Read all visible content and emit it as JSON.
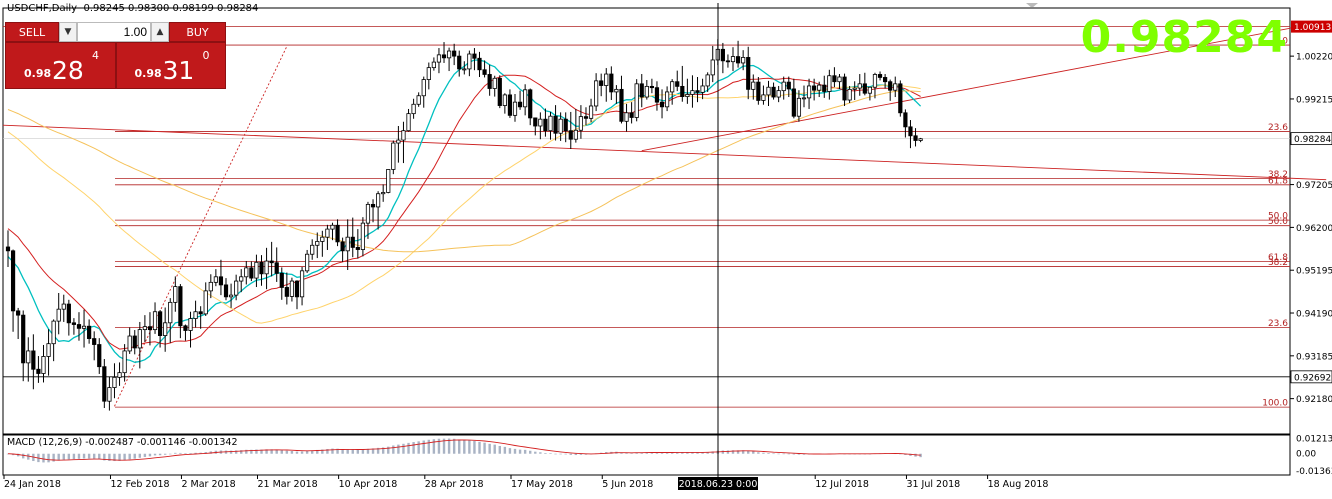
{
  "header": {
    "symbol_line": "USDCHF,Daily  0.98245 0.98300 0.98199 0.98284",
    "big_price": "0.98284"
  },
  "trade_panel": {
    "sell_label": "SELL",
    "buy_label": "BUY",
    "volume": "1.00",
    "sell_small": "0.98",
    "sell_large": "28",
    "sell_sup": "4",
    "buy_small": "0.98",
    "buy_large": "31",
    "buy_sup": "0"
  },
  "macd_label": "MACD (12,26,9) -0.002487 -0.001146 -0.001342",
  "cursor_date": "2018.06.23 0:00",
  "colors": {
    "bull": "#ffffff",
    "bear": "#000000",
    "ma_fast": "#00c0c0",
    "ma_mid": "#d42020",
    "ma_slow1": "#ffd36b",
    "ma_slow2": "#f5c25a",
    "fib": "#b22222",
    "current_price_bg": "#ffffff",
    "resistance_bg": "#cc0000"
  },
  "chart_data": [
    {
      "type": "candlestick",
      "symbol": "USDCHF",
      "timeframe": "Daily",
      "ylim": [
        0.9135,
        1.0135
      ],
      "x_tick_labels": [
        "24 Jan 2018",
        "12 Feb 2018",
        "2 Mar 2018",
        "21 Mar 2018",
        "10 Apr 2018",
        "28 Apr 2018",
        "17 May 2018",
        "5 Jun 2018",
        "12 Jul 2018",
        "31 Jul 2018",
        "18 Aug 2018"
      ],
      "y_tick_labels": [
        "0.92180",
        "0.93185",
        "0.94190",
        "0.95195",
        "0.96200",
        "0.97205",
        "0.98284",
        "0.99215",
        "1.00220",
        "1.00913"
      ],
      "price_markers": {
        "current": 0.98284,
        "line": 0.92692,
        "resistance": 1.00913
      },
      "fib_levels": [
        {
          "label": "23.6",
          "price": 0.9845
        },
        {
          "label": "38.2",
          "price": 0.9735
        },
        {
          "label": "61.8",
          "price": 0.972
        },
        {
          "label": "50.0",
          "price": 0.9637
        },
        {
          "label": "50.0",
          "price": 0.9624
        },
        {
          "label": "61.8",
          "price": 0.954
        },
        {
          "label": "38.2",
          "price": 0.9528
        },
        {
          "label": "23.6",
          "price": 0.9385
        },
        {
          "label": "100.0",
          "price": 0.9198
        },
        {
          "label": "0.0",
          "price": 1.0048
        }
      ],
      "ohlc": [
        [
          0.9574,
          0.9613,
          0.9527,
          0.9565
        ],
        [
          0.9565,
          0.9568,
          0.9375,
          0.9424
        ],
        [
          0.9424,
          0.9431,
          0.9358,
          0.9414
        ],
        [
          0.9414,
          0.9425,
          0.9259,
          0.9302
        ],
        [
          0.9302,
          0.9362,
          0.9258,
          0.933
        ],
        [
          0.933,
          0.9369,
          0.924,
          0.9287
        ],
        [
          0.9287,
          0.9318,
          0.9255,
          0.9277
        ],
        [
          0.9277,
          0.9344,
          0.9256,
          0.9317
        ],
        [
          0.9317,
          0.9381,
          0.9272,
          0.9347
        ],
        [
          0.9347,
          0.9404,
          0.9306,
          0.94
        ],
        [
          0.94,
          0.9466,
          0.9369,
          0.9428
        ],
        [
          0.9428,
          0.9462,
          0.9398,
          0.944
        ],
        [
          0.944,
          0.945,
          0.9366,
          0.9396
        ],
        [
          0.9396,
          0.9407,
          0.9368,
          0.9392
        ],
        [
          0.9392,
          0.9421,
          0.9354,
          0.9383
        ],
        [
          0.9383,
          0.9427,
          0.9338,
          0.9388
        ],
        [
          0.9388,
          0.9404,
          0.9347,
          0.9359
        ],
        [
          0.9359,
          0.9376,
          0.9308,
          0.9345
        ],
        [
          0.9345,
          0.936,
          0.9276,
          0.9293
        ],
        [
          0.9293,
          0.9311,
          0.9196,
          0.9212
        ],
        [
          0.9212,
          0.9269,
          0.919,
          0.9244
        ],
        [
          0.9244,
          0.9301,
          0.9219,
          0.9268
        ],
        [
          0.9268,
          0.9303,
          0.9248,
          0.9279
        ],
        [
          0.9279,
          0.9346,
          0.9258,
          0.933
        ],
        [
          0.933,
          0.9385,
          0.9323,
          0.9365
        ],
        [
          0.9365,
          0.9379,
          0.9322,
          0.9337
        ],
        [
          0.9337,
          0.9398,
          0.9289,
          0.938
        ],
        [
          0.938,
          0.9414,
          0.9351,
          0.9387
        ],
        [
          0.9387,
          0.9421,
          0.9343,
          0.938
        ],
        [
          0.938,
          0.9444,
          0.937,
          0.9422
        ],
        [
          0.9422,
          0.9426,
          0.9338,
          0.9366
        ],
        [
          0.9366,
          0.9432,
          0.9328,
          0.9396
        ],
        [
          0.9396,
          0.9454,
          0.9349,
          0.9444
        ],
        [
          0.9444,
          0.9505,
          0.9422,
          0.9481
        ],
        [
          0.9481,
          0.9487,
          0.936,
          0.9389
        ],
        [
          0.9389,
          0.9392,
          0.9354,
          0.9378
        ],
        [
          0.9378,
          0.9422,
          0.9338,
          0.9406
        ],
        [
          0.9406,
          0.9448,
          0.9385,
          0.9422
        ],
        [
          0.9422,
          0.9435,
          0.9382,
          0.9417
        ],
        [
          0.9417,
          0.9491,
          0.9412,
          0.9471
        ],
        [
          0.9471,
          0.951,
          0.9454,
          0.9491
        ],
        [
          0.9491,
          0.9522,
          0.9482,
          0.9504
        ],
        [
          0.9504,
          0.9544,
          0.9461,
          0.9485
        ],
        [
          0.9485,
          0.9501,
          0.9449,
          0.9457
        ],
        [
          0.9457,
          0.9488,
          0.9431,
          0.9461
        ],
        [
          0.9461,
          0.9509,
          0.9449,
          0.9494
        ],
        [
          0.9494,
          0.9522,
          0.9468,
          0.9504
        ],
        [
          0.9504,
          0.9541,
          0.9486,
          0.9525
        ],
        [
          0.9525,
          0.954,
          0.9494,
          0.9501
        ],
        [
          0.9501,
          0.9556,
          0.948,
          0.9538
        ],
        [
          0.9538,
          0.9555,
          0.9483,
          0.9511
        ],
        [
          0.9511,
          0.9572,
          0.9475,
          0.9541
        ],
        [
          0.9541,
          0.9586,
          0.9505,
          0.9537
        ],
        [
          0.9537,
          0.9573,
          0.9492,
          0.9512
        ],
        [
          0.9512,
          0.9526,
          0.945,
          0.9479
        ],
        [
          0.9479,
          0.9514,
          0.9439,
          0.9458
        ],
        [
          0.9458,
          0.9502,
          0.9446,
          0.9494
        ],
        [
          0.9494,
          0.9496,
          0.9428,
          0.9457
        ],
        [
          0.9457,
          0.9527,
          0.9437,
          0.9518
        ],
        [
          0.9518,
          0.9567,
          0.9513,
          0.9557
        ],
        [
          0.9557,
          0.9592,
          0.9544,
          0.9578
        ],
        [
          0.9578,
          0.9608,
          0.9548,
          0.9587
        ],
        [
          0.9587,
          0.9612,
          0.9551,
          0.9597
        ],
        [
          0.9597,
          0.9626,
          0.9567,
          0.9616
        ],
        [
          0.9616,
          0.9631,
          0.959,
          0.9625
        ],
        [
          0.9625,
          0.9639,
          0.9576,
          0.9586
        ],
        [
          0.9586,
          0.9596,
          0.9539,
          0.9565
        ],
        [
          0.9565,
          0.9639,
          0.952,
          0.9597
        ],
        [
          0.9597,
          0.9643,
          0.955,
          0.9573
        ],
        [
          0.9573,
          0.9616,
          0.9547,
          0.9568
        ],
        [
          0.9568,
          0.9644,
          0.9552,
          0.963
        ],
        [
          0.963,
          0.968,
          0.9593,
          0.9674
        ],
        [
          0.9674,
          0.9686,
          0.9632,
          0.9668
        ],
        [
          0.9668,
          0.9705,
          0.9615,
          0.9699
        ],
        [
          0.9699,
          0.9721,
          0.968,
          0.9702
        ],
        [
          0.9702,
          0.9757,
          0.97,
          0.9756
        ],
        [
          0.9756,
          0.9824,
          0.9745,
          0.9818
        ],
        [
          0.9818,
          0.9858,
          0.9772,
          0.9825
        ],
        [
          0.9825,
          0.9868,
          0.9771,
          0.9847
        ],
        [
          0.9847,
          0.9898,
          0.9845,
          0.9887
        ],
        [
          0.9887,
          0.9922,
          0.9875,
          0.9909
        ],
        [
          0.9909,
          0.9937,
          0.9903,
          0.9929
        ],
        [
          0.9929,
          0.9974,
          0.9901,
          0.9967
        ],
        [
          0.9967,
          1.0007,
          0.9944,
          0.9995
        ],
        [
          0.9995,
          1.0019,
          0.9988,
          1.0008
        ],
        [
          1.0008,
          1.0041,
          0.9982,
          1.0025
        ],
        [
          1.0025,
          1.0055,
          1.0006,
          1.0018
        ],
        [
          1.0018,
          1.0042,
          0.9987,
          1.0034
        ],
        [
          1.0034,
          1.0051,
          1.0001,
          1.0022
        ],
        [
          1.0022,
          1.0035,
          0.9974,
          0.9992
        ],
        [
          0.9992,
          1.001,
          0.9979,
          0.9992
        ],
        [
          0.9992,
          1.0035,
          0.9975,
          1.0027
        ],
        [
          1.0027,
          1.0041,
          0.9989,
          1.0017
        ],
        [
          1.0017,
          1.0032,
          0.9973,
          0.999
        ],
        [
          0.999,
          1.0012,
          0.9972,
          0.9979
        ],
        [
          0.9979,
          1.0002,
          0.9929,
          0.9946
        ],
        [
          0.9946,
          0.9976,
          0.9927,
          0.997
        ],
        [
          0.997,
          0.9977,
          0.99,
          0.9906
        ],
        [
          0.9906,
          0.9935,
          0.9887,
          0.9931
        ],
        [
          0.9931,
          0.9944,
          0.9877,
          0.9883
        ],
        [
          0.9883,
          0.9933,
          0.9868,
          0.9914
        ],
        [
          0.9914,
          0.9941,
          0.9896,
          0.9903
        ],
        [
          0.9903,
          0.9956,
          0.9883,
          0.9943
        ],
        [
          0.9943,
          0.9946,
          0.986,
          0.9877
        ],
        [
          0.9877,
          0.9878,
          0.9836,
          0.9858
        ],
        [
          0.9858,
          0.989,
          0.9827,
          0.9874
        ],
        [
          0.9874,
          0.9899,
          0.9833,
          0.9847
        ],
        [
          0.9847,
          0.9891,
          0.9826,
          0.9881
        ],
        [
          0.9881,
          0.9907,
          0.9824,
          0.9841
        ],
        [
          0.9841,
          0.989,
          0.9823,
          0.9874
        ],
        [
          0.9874,
          0.989,
          0.982,
          0.9847
        ],
        [
          0.9847,
          0.9891,
          0.9804,
          0.9827
        ],
        [
          0.9827,
          0.9898,
          0.9819,
          0.9848
        ],
        [
          0.9848,
          0.9907,
          0.9828,
          0.988
        ],
        [
          0.988,
          0.9902,
          0.986,
          0.9876
        ],
        [
          0.9876,
          0.9922,
          0.9867,
          0.9905
        ],
        [
          0.9905,
          0.9982,
          0.9893,
          0.9964
        ],
        [
          0.9964,
          0.9981,
          0.9928,
          0.9953
        ],
        [
          0.9953,
          0.9994,
          0.9915,
          0.998
        ],
        [
          0.998,
          0.9998,
          0.9919,
          0.9938
        ],
        [
          0.9938,
          0.9954,
          0.991,
          0.9944
        ],
        [
          0.9944,
          0.9976,
          0.9864,
          0.9869
        ],
        [
          0.9869,
          0.991,
          0.9845,
          0.9889
        ],
        [
          0.9889,
          0.9914,
          0.9864,
          0.9878
        ],
        [
          0.9878,
          0.9968,
          0.9869,
          0.9957
        ],
        [
          0.9957,
          0.998,
          0.9902,
          0.9926
        ],
        [
          0.9926,
          0.9966,
          0.992,
          0.9951
        ],
        [
          0.9951,
          0.9969,
          0.9935,
          0.9948
        ],
        [
          0.9948,
          0.9963,
          0.9894,
          0.9914
        ],
        [
          0.9914,
          0.9944,
          0.9876,
          0.9903
        ],
        [
          0.9903,
          0.9951,
          0.9893,
          0.9938
        ],
        [
          0.9938,
          0.9968,
          0.9908,
          0.9962
        ],
        [
          0.9962,
          0.9988,
          0.994,
          0.9951
        ],
        [
          0.9951,
          0.9999,
          0.9915,
          0.9927
        ],
        [
          0.9927,
          0.9969,
          0.991,
          0.9932
        ],
        [
          0.9932,
          0.9977,
          0.9901,
          0.9941
        ],
        [
          0.9941,
          0.9973,
          0.9914,
          0.9937
        ],
        [
          0.9937,
          0.9969,
          0.9921,
          0.9952
        ],
        [
          0.9952,
          0.9984,
          0.9938,
          0.9978
        ],
        [
          0.9978,
          1.0046,
          0.9961,
          1.0013
        ],
        [
          1.0013,
          1.0062,
          1.0001,
          1.0038
        ],
        [
          1.0038,
          1.0053,
          0.9982,
          1.0011
        ],
        [
          1.0011,
          1.0026,
          0.9995,
          1.0009
        ],
        [
          1.0009,
          1.0043,
          0.9987,
          1.0021
        ],
        [
          1.0021,
          1.0058,
          0.9995,
          1.0006
        ],
        [
          1.0006,
          1.0036,
          0.9989,
          1.0019
        ],
        [
          1.0019,
          1.0044,
          0.9921,
          0.9944
        ],
        [
          0.9944,
          0.9979,
          0.992,
          0.9961
        ],
        [
          0.9961,
          0.9973,
          0.9908,
          0.9918
        ],
        [
          0.9918,
          0.9953,
          0.9908,
          0.9931
        ],
        [
          0.9931,
          0.9964,
          0.9905,
          0.9949
        ],
        [
          0.9949,
          0.996,
          0.992,
          0.9926
        ],
        [
          0.9926,
          0.9952,
          0.9914,
          0.9941
        ],
        [
          0.9941,
          0.9974,
          0.992,
          0.9961
        ],
        [
          0.9961,
          0.9974,
          0.9926,
          0.9945
        ],
        [
          0.9945,
          0.9969,
          0.9876,
          0.9881
        ],
        [
          0.9881,
          0.9942,
          0.9868,
          0.9923
        ],
        [
          0.9923,
          0.9953,
          0.9902,
          0.9924
        ],
        [
          0.9924,
          0.9969,
          0.9898,
          0.9952
        ],
        [
          0.9952,
          0.9969,
          0.9918,
          0.9942
        ],
        [
          0.9942,
          0.9962,
          0.9926,
          0.9954
        ],
        [
          0.9954,
          0.9976,
          0.9924,
          0.9939
        ],
        [
          0.9939,
          0.999,
          0.992,
          0.9976
        ],
        [
          0.9976,
          0.9996,
          0.9949,
          0.9962
        ],
        [
          0.9962,
          0.998,
          0.9945,
          0.9973
        ],
        [
          0.9973,
          0.9981,
          0.9905,
          0.9919
        ],
        [
          0.9919,
          0.9952,
          0.9912,
          0.9944
        ],
        [
          0.9944,
          0.9963,
          0.9919,
          0.9947
        ],
        [
          0.9947,
          0.998,
          0.9929,
          0.9957
        ],
        [
          0.9957,
          0.9983,
          0.993,
          0.9935
        ],
        [
          0.9935,
          0.995,
          0.9918,
          0.9949
        ],
        [
          0.9949,
          0.9983,
          0.9923,
          0.9979
        ],
        [
          0.9979,
          0.9986,
          0.9965,
          0.9972
        ],
        [
          0.9972,
          0.998,
          0.9946,
          0.9962
        ],
        [
          0.9962,
          0.9967,
          0.9917,
          0.9942
        ],
        [
          0.9942,
          0.9974,
          0.9926,
          0.9957
        ],
        [
          0.9957,
          0.9965,
          0.988,
          0.9889
        ],
        [
          0.9889,
          0.9897,
          0.9831,
          0.9856
        ],
        [
          0.9856,
          0.9872,
          0.9806,
          0.9835
        ],
        [
          0.9835,
          0.9853,
          0.981,
          0.9824
        ],
        [
          0.9824,
          0.983,
          0.982,
          0.9828
        ]
      ]
    },
    {
      "type": "line",
      "title": "MACD (12,26,9)",
      "values_shown": [
        -0.002487,
        -0.001146,
        -0.001342
      ],
      "y_tick_labels": [
        "0.012131",
        "0.00",
        "-0.013637"
      ],
      "ylim": [
        -0.016,
        0.014
      ]
    }
  ]
}
